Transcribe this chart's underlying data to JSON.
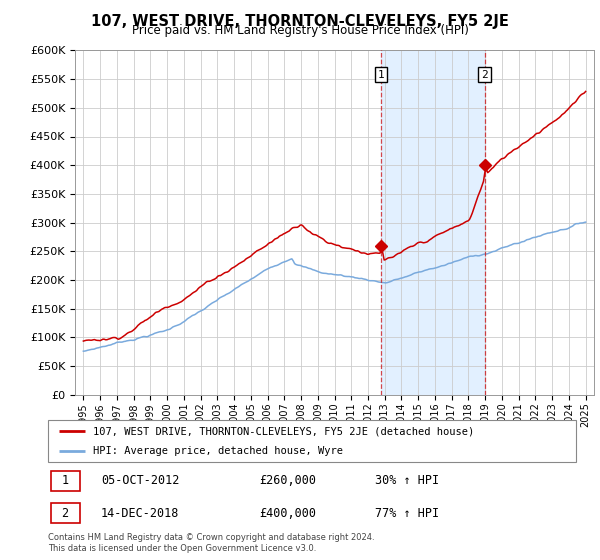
{
  "title": "107, WEST DRIVE, THORNTON-CLEVELEYS, FY5 2JE",
  "subtitle": "Price paid vs. HM Land Registry's House Price Index (HPI)",
  "legend_line1": "107, WEST DRIVE, THORNTON-CLEVELEYS, FY5 2JE (detached house)",
  "legend_line2": "HPI: Average price, detached house, Wyre",
  "footnote": "Contains HM Land Registry data © Crown copyright and database right 2024.\nThis data is licensed under the Open Government Licence v3.0.",
  "sale1_date": "05-OCT-2012",
  "sale1_price": "£260,000",
  "sale1_hpi": "30% ↑ HPI",
  "sale2_date": "14-DEC-2018",
  "sale2_price": "£400,000",
  "sale2_hpi": "77% ↑ HPI",
  "sale1_x": 2012.76,
  "sale1_y": 260000,
  "sale2_x": 2018.96,
  "sale2_y": 400000,
  "vline1_x": 2012.76,
  "vline2_x": 2018.96,
  "ylim": [
    0,
    600000
  ],
  "xlim": [
    1994.5,
    2025.5
  ],
  "hpi_color": "#7aaadd",
  "price_color": "#cc0000",
  "bg_color": "#ffffff",
  "plot_bg": "#ffffff",
  "grid_color": "#cccccc",
  "shaded_color": "#ddeeff"
}
